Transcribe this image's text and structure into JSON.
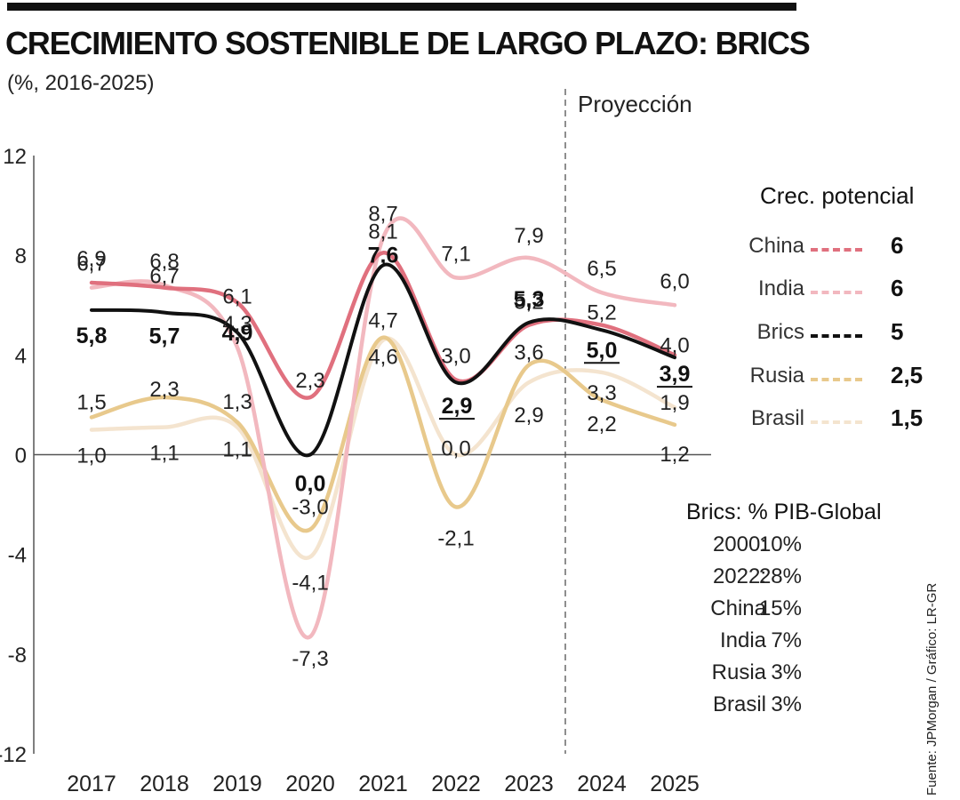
{
  "header": {
    "title": "CRECIMIENTO SOSTENIBLE DE LARGO PLAZO: BRICS",
    "subtitle": "(%, 2016-2025)",
    "projection_label": "Proyección"
  },
  "source": "Fuente: JPMorgan / Gráfico: LR-GR",
  "colors": {
    "China": "#e0707e",
    "India": "#f2b8bf",
    "Brics": "#111111",
    "Rusia": "#e8c98c",
    "Brasil": "#f4e4cf"
  },
  "chart_data": {
    "type": "line",
    "x": [
      "2017",
      "2018",
      "2019",
      "2020",
      "2021",
      "2022",
      "2023",
      "2024",
      "2025"
    ],
    "ylim": [
      -12,
      12
    ],
    "yticks": [
      "12",
      "8",
      "4",
      "0",
      "-4",
      "-8",
      "-12"
    ],
    "projection_start_after": "2023",
    "series": [
      {
        "name": "China",
        "values": [
          6.9,
          6.7,
          6.1,
          2.3,
          8.1,
          3.0,
          5.2,
          5.2,
          4.0
        ],
        "labels": [
          "6,9",
          "6,7",
          "6,1",
          "2,3",
          "8,1",
          "3,0",
          "5,2",
          "5,2",
          "4,0"
        ],
        "bold": false
      },
      {
        "name": "India",
        "values": [
          6.7,
          6.8,
          4.3,
          -7.3,
          8.7,
          7.1,
          7.9,
          6.5,
          6.0
        ],
        "labels": [
          "6,7",
          "6,8",
          "4,3",
          "-7,3",
          "8,7",
          "7,1",
          "7,9",
          "6,5",
          "6,0"
        ],
        "bold": false
      },
      {
        "name": "Brics",
        "values": [
          5.8,
          5.7,
          4.9,
          0.0,
          7.6,
          2.9,
          5.3,
          5.0,
          3.9
        ],
        "labels": [
          "5,8",
          "5,7",
          "4,9",
          "0,0",
          "7,6",
          "2,9",
          "5,3",
          "5,0",
          "3,9"
        ],
        "bold": true
      },
      {
        "name": "Rusia",
        "values": [
          1.5,
          2.3,
          1.3,
          -3.0,
          4.7,
          -2.1,
          3.6,
          2.2,
          1.2
        ],
        "labels": [
          "1,5",
          "2,3",
          "1,3",
          "-3,0",
          "4,7",
          "-2,1",
          "3,6",
          "2,2",
          "1,2"
        ],
        "bold": false
      },
      {
        "name": "Brasil",
        "values": [
          1.0,
          1.1,
          1.1,
          -4.1,
          4.6,
          0.0,
          2.9,
          3.3,
          1.9
        ],
        "labels": [
          "1,0",
          "1,1",
          "1,1",
          "-4,1",
          "4,6",
          "0,0",
          "2,9",
          "3,3",
          "1,9"
        ],
        "bold": false
      }
    ]
  },
  "legend": {
    "title": "Crec. potencial",
    "items": [
      {
        "name": "China",
        "value": "6"
      },
      {
        "name": "India",
        "value": "6"
      },
      {
        "name": "Brics",
        "value": "5"
      },
      {
        "name": "Rusia",
        "value": "2,5"
      },
      {
        "name": "Brasil",
        "value": "1,5"
      }
    ]
  },
  "gdp_share": {
    "title": "Brics: % PIB-Global",
    "rows": [
      {
        "label": "2000:",
        "value": "10%"
      },
      {
        "label": "2022:",
        "value": "28%"
      },
      {
        "label": "China",
        "value": "15%"
      },
      {
        "label": "India",
        "value": "7%"
      },
      {
        "label": "Rusia",
        "value": "3%"
      },
      {
        "label": "Brasil",
        "value": "3%"
      }
    ]
  }
}
